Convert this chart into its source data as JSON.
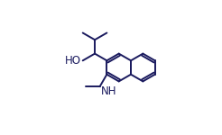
{
  "bg_color": "#ffffff",
  "line_color": "#1a1a5e",
  "line_width": 1.4,
  "font_color": "#1a1a5e",
  "font_size": 8.5,
  "figsize": [
    2.46,
    1.5
  ],
  "dpi": 100,
  "xlim": [
    -0.05,
    1.05
  ],
  "ylim": [
    -0.05,
    1.05
  ]
}
